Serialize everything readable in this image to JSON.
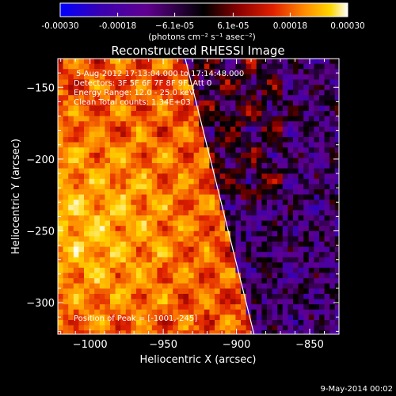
{
  "chart_data": {
    "type": "heatmap",
    "title": "Reconstructed RHESSI Image",
    "xlabel": "Heliocentric X (arcsec)",
    "ylabel": "Heliocentric Y (arcsec)",
    "xlim": [
      -1022,
      -830
    ],
    "ylim": [
      -322,
      -130
    ],
    "x_ticks": [
      -1000,
      -950,
      -900,
      -850
    ],
    "x_tick_labels": [
      "−1000",
      "−950",
      "−900",
      "−850"
    ],
    "y_ticks": [
      -150,
      -200,
      -250,
      -300
    ],
    "y_tick_labels": [
      "−150",
      "−200",
      "−250",
      "−300"
    ],
    "colorbar": {
      "range": [
        -0.0003,
        0.0003
      ],
      "ticks": [
        -0.0003,
        -0.00018,
        -6.1e-05,
        6.1e-05,
        0.00018,
        0.0003
      ],
      "tick_labels": [
        "-0.00030",
        "-0.00018",
        "−6.1e-05",
        "6.1e-05",
        "0.00018",
        "0.00030"
      ],
      "unit_label": "(photons cm⁻² s⁻¹ asec⁻²)",
      "colors": [
        "#0000ff",
        "#3a00b0",
        "#600090",
        "#000000",
        "#8a0000",
        "#e02000",
        "#ff8c00",
        "#ffd700",
        "#ffffff"
      ]
    },
    "info_lines": [
      "5-Aug-2012 17:13:04.000 to 17:14:48.000",
      "Detectors: 3F 5F 6F 7F 8F 9F, Att 0",
      "Energy Range: 12.0 - 25.0 keV",
      "Clean    Total counts: 1.34E+03"
    ],
    "peak_label": "Position of Peak = [-1001,-245]",
    "peak_position": [
      -1001,
      -245
    ],
    "limb_line": [
      [
        -935,
        -130
      ],
      [
        -888,
        -322
      ]
    ],
    "grid": false
  },
  "footer": {
    "date": "9-May-2014 00:02"
  }
}
